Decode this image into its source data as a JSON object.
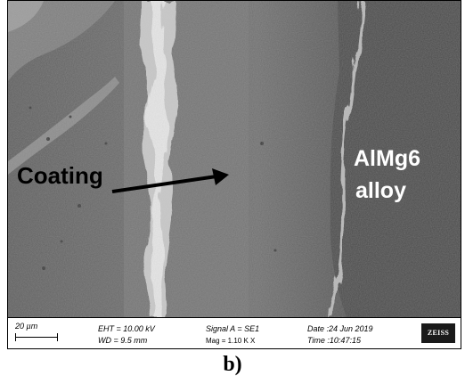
{
  "image": {
    "labels": {
      "coating": "Coating",
      "alloy_line1": "AlMg6",
      "alloy_line2": "alloy"
    }
  },
  "databar": {
    "scale_bar": "20 µm",
    "eht": "EHT = 10.00 kV",
    "wd": "WD = 9.5 mm",
    "signal": "Signal A = SE1",
    "mag": "Mag = 1.10 K X",
    "date": "Date :24 Jun 2019",
    "time": "Time :10:47:15",
    "logo": "ZEISS"
  },
  "caption": "b)"
}
